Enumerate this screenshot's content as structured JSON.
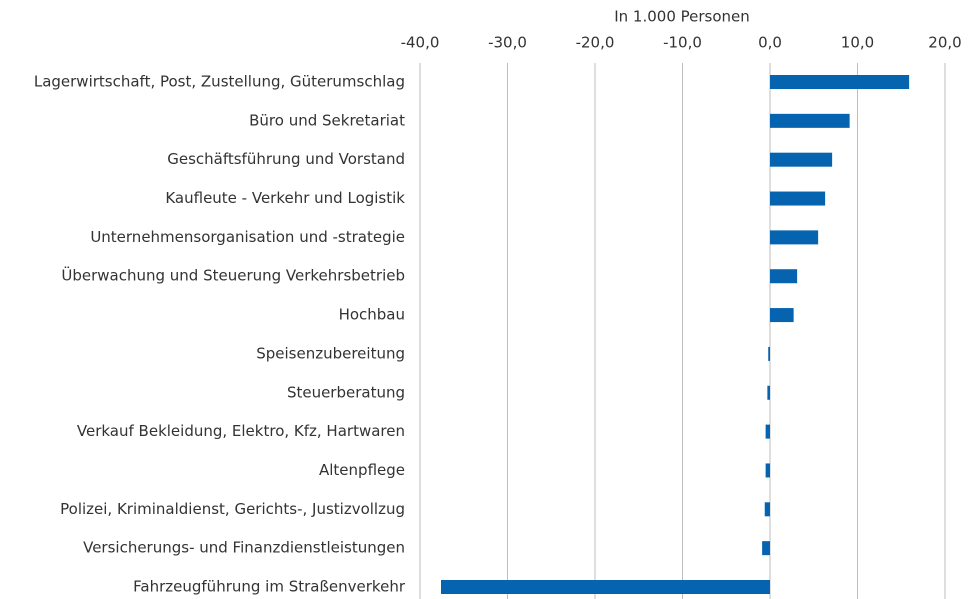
{
  "chart_data": {
    "type": "bar",
    "orientation": "horizontal",
    "x_label": "In 1.000 Personen",
    "categories": [
      "Lagerwirtschaft, Post, Zustellung, Güterumschlag",
      "Büro und Sekretariat",
      "Geschäftsführung und Vorstand",
      "Kaufleute - Verkehr und Logistik",
      "Unternehmensorganisation und -strategie",
      "Überwachung und Steuerung Verkehrsbetrieb",
      "Hochbau",
      "Speisenzubereitung",
      "Steuerberatung",
      "Verkauf Bekleidung, Elektro, Kfz, Hartwaren",
      "Altenpflege",
      "Polizei, Kriminaldienst, Gerichts-, Justizvollzug",
      "Versicherungs- und Finanzdienstleistungen",
      "Fahrzeugführung im Straßenverkehr"
    ],
    "values": [
      15.9,
      9.1,
      7.1,
      6.3,
      5.5,
      3.1,
      2.7,
      -0.2,
      -0.3,
      -0.5,
      -0.5,
      -0.6,
      -0.9,
      -37.6
    ],
    "color": "#0563b0",
    "xlim": [
      -40,
      20
    ],
    "xticks": [
      {
        "value": -40,
        "label": "-40,0"
      },
      {
        "value": -30,
        "label": "-30,0"
      },
      {
        "value": -20,
        "label": "-20,0"
      },
      {
        "value": -10,
        "label": "-10,0"
      },
      {
        "value": 0,
        "label": "0,0"
      },
      {
        "value": 10,
        "label": "10,0"
      },
      {
        "value": 20,
        "label": "20,0"
      }
    ],
    "grid": true
  }
}
